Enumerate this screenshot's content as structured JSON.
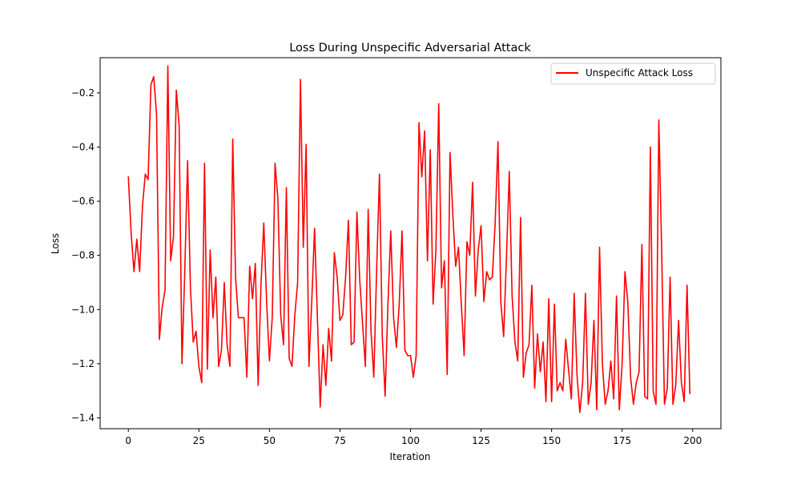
{
  "chart_data": {
    "type": "line",
    "title": "Loss During Unspecific Adversarial Attack",
    "xlabel": "Iteration",
    "ylabel": "Loss",
    "xlim": [
      -10,
      210
    ],
    "ylim": [
      -1.44,
      -0.07
    ],
    "x_ticks": [
      0,
      25,
      50,
      75,
      100,
      125,
      150,
      175,
      200
    ],
    "x_tick_labels": [
      "0",
      "25",
      "50",
      "75",
      "100",
      "125",
      "150",
      "175",
      "200"
    ],
    "y_ticks": [
      -1.4,
      -1.2,
      -1.0,
      -0.8,
      -0.6,
      -0.4,
      -0.2
    ],
    "y_tick_labels": [
      "−1.4",
      "−1.2",
      "−1.0",
      "−0.8",
      "−0.6",
      "−0.4",
      "−0.2"
    ],
    "grid": false,
    "legend_position": "top-right",
    "series": [
      {
        "name": "Unspecific Attack Loss",
        "color": "#ff0000",
        "x_start": 0,
        "x_step": 1,
        "values": [
          -0.51,
          -0.72,
          -0.86,
          -0.74,
          -0.86,
          -0.62,
          -0.5,
          -0.52,
          -0.17,
          -0.14,
          -0.28,
          -1.11,
          -0.99,
          -0.93,
          -0.1,
          -0.82,
          -0.73,
          -0.19,
          -0.32,
          -1.2,
          -0.86,
          -0.45,
          -0.92,
          -1.12,
          -1.08,
          -1.21,
          -1.27,
          -0.46,
          -1.22,
          -0.78,
          -1.03,
          -0.88,
          -1.21,
          -1.15,
          -0.9,
          -1.13,
          -1.21,
          -0.37,
          -0.88,
          -1.03,
          -1.03,
          -1.03,
          -1.25,
          -0.84,
          -0.96,
          -0.83,
          -1.28,
          -0.91,
          -0.68,
          -0.97,
          -1.19,
          -1.03,
          -0.46,
          -0.59,
          -1.02,
          -1.13,
          -0.55,
          -1.18,
          -1.21,
          -1.02,
          -0.9,
          -0.15,
          -0.77,
          -0.39,
          -1.21,
          -0.97,
          -0.7,
          -1.03,
          -1.36,
          -1.13,
          -1.28,
          -1.07,
          -1.19,
          -0.79,
          -0.88,
          -1.04,
          -1.02,
          -0.88,
          -0.67,
          -1.13,
          -1.12,
          -0.64,
          -0.89,
          -1.05,
          -1.21,
          -0.63,
          -1.08,
          -1.25,
          -0.85,
          -0.5,
          -1.1,
          -1.32,
          -0.98,
          -0.71,
          -1.03,
          -1.14,
          -0.98,
          -0.71,
          -1.15,
          -1.17,
          -1.17,
          -1.25,
          -1.17,
          -0.31,
          -0.51,
          -0.34,
          -0.82,
          -0.41,
          -0.98,
          -0.78,
          -0.24,
          -0.92,
          -0.82,
          -1.24,
          -0.42,
          -0.65,
          -0.84,
          -0.77,
          -0.98,
          -1.17,
          -0.75,
          -0.8,
          -0.53,
          -0.95,
          -0.78,
          -0.69,
          -0.97,
          -0.86,
          -0.89,
          -0.88,
          -0.68,
          -0.38,
          -0.97,
          -1.1,
          -0.81,
          -0.49,
          -0.95,
          -1.12,
          -1.19,
          -0.66,
          -1.25,
          -1.16,
          -1.13,
          -0.91,
          -1.29,
          -1.09,
          -1.23,
          -1.12,
          -1.34,
          -0.96,
          -1.34,
          -0.98,
          -1.3,
          -1.27,
          -1.3,
          -1.11,
          -1.22,
          -1.33,
          -0.94,
          -1.24,
          -1.38,
          -1.27,
          -0.94,
          -1.35,
          -1.27,
          -1.04,
          -1.37,
          -0.77,
          -1.2,
          -1.35,
          -1.3,
          -1.19,
          -1.33,
          -0.95,
          -1.37,
          -1.2,
          -0.86,
          -0.97,
          -1.25,
          -1.35,
          -1.27,
          -1.23,
          -0.76,
          -1.32,
          -1.33,
          -0.4,
          -1.3,
          -1.35,
          -0.3,
          -0.78,
          -1.35,
          -1.29,
          -0.88,
          -1.35,
          -1.28,
          -1.04,
          -1.27,
          -1.34,
          -0.91,
          -1.31
        ]
      }
    ]
  }
}
